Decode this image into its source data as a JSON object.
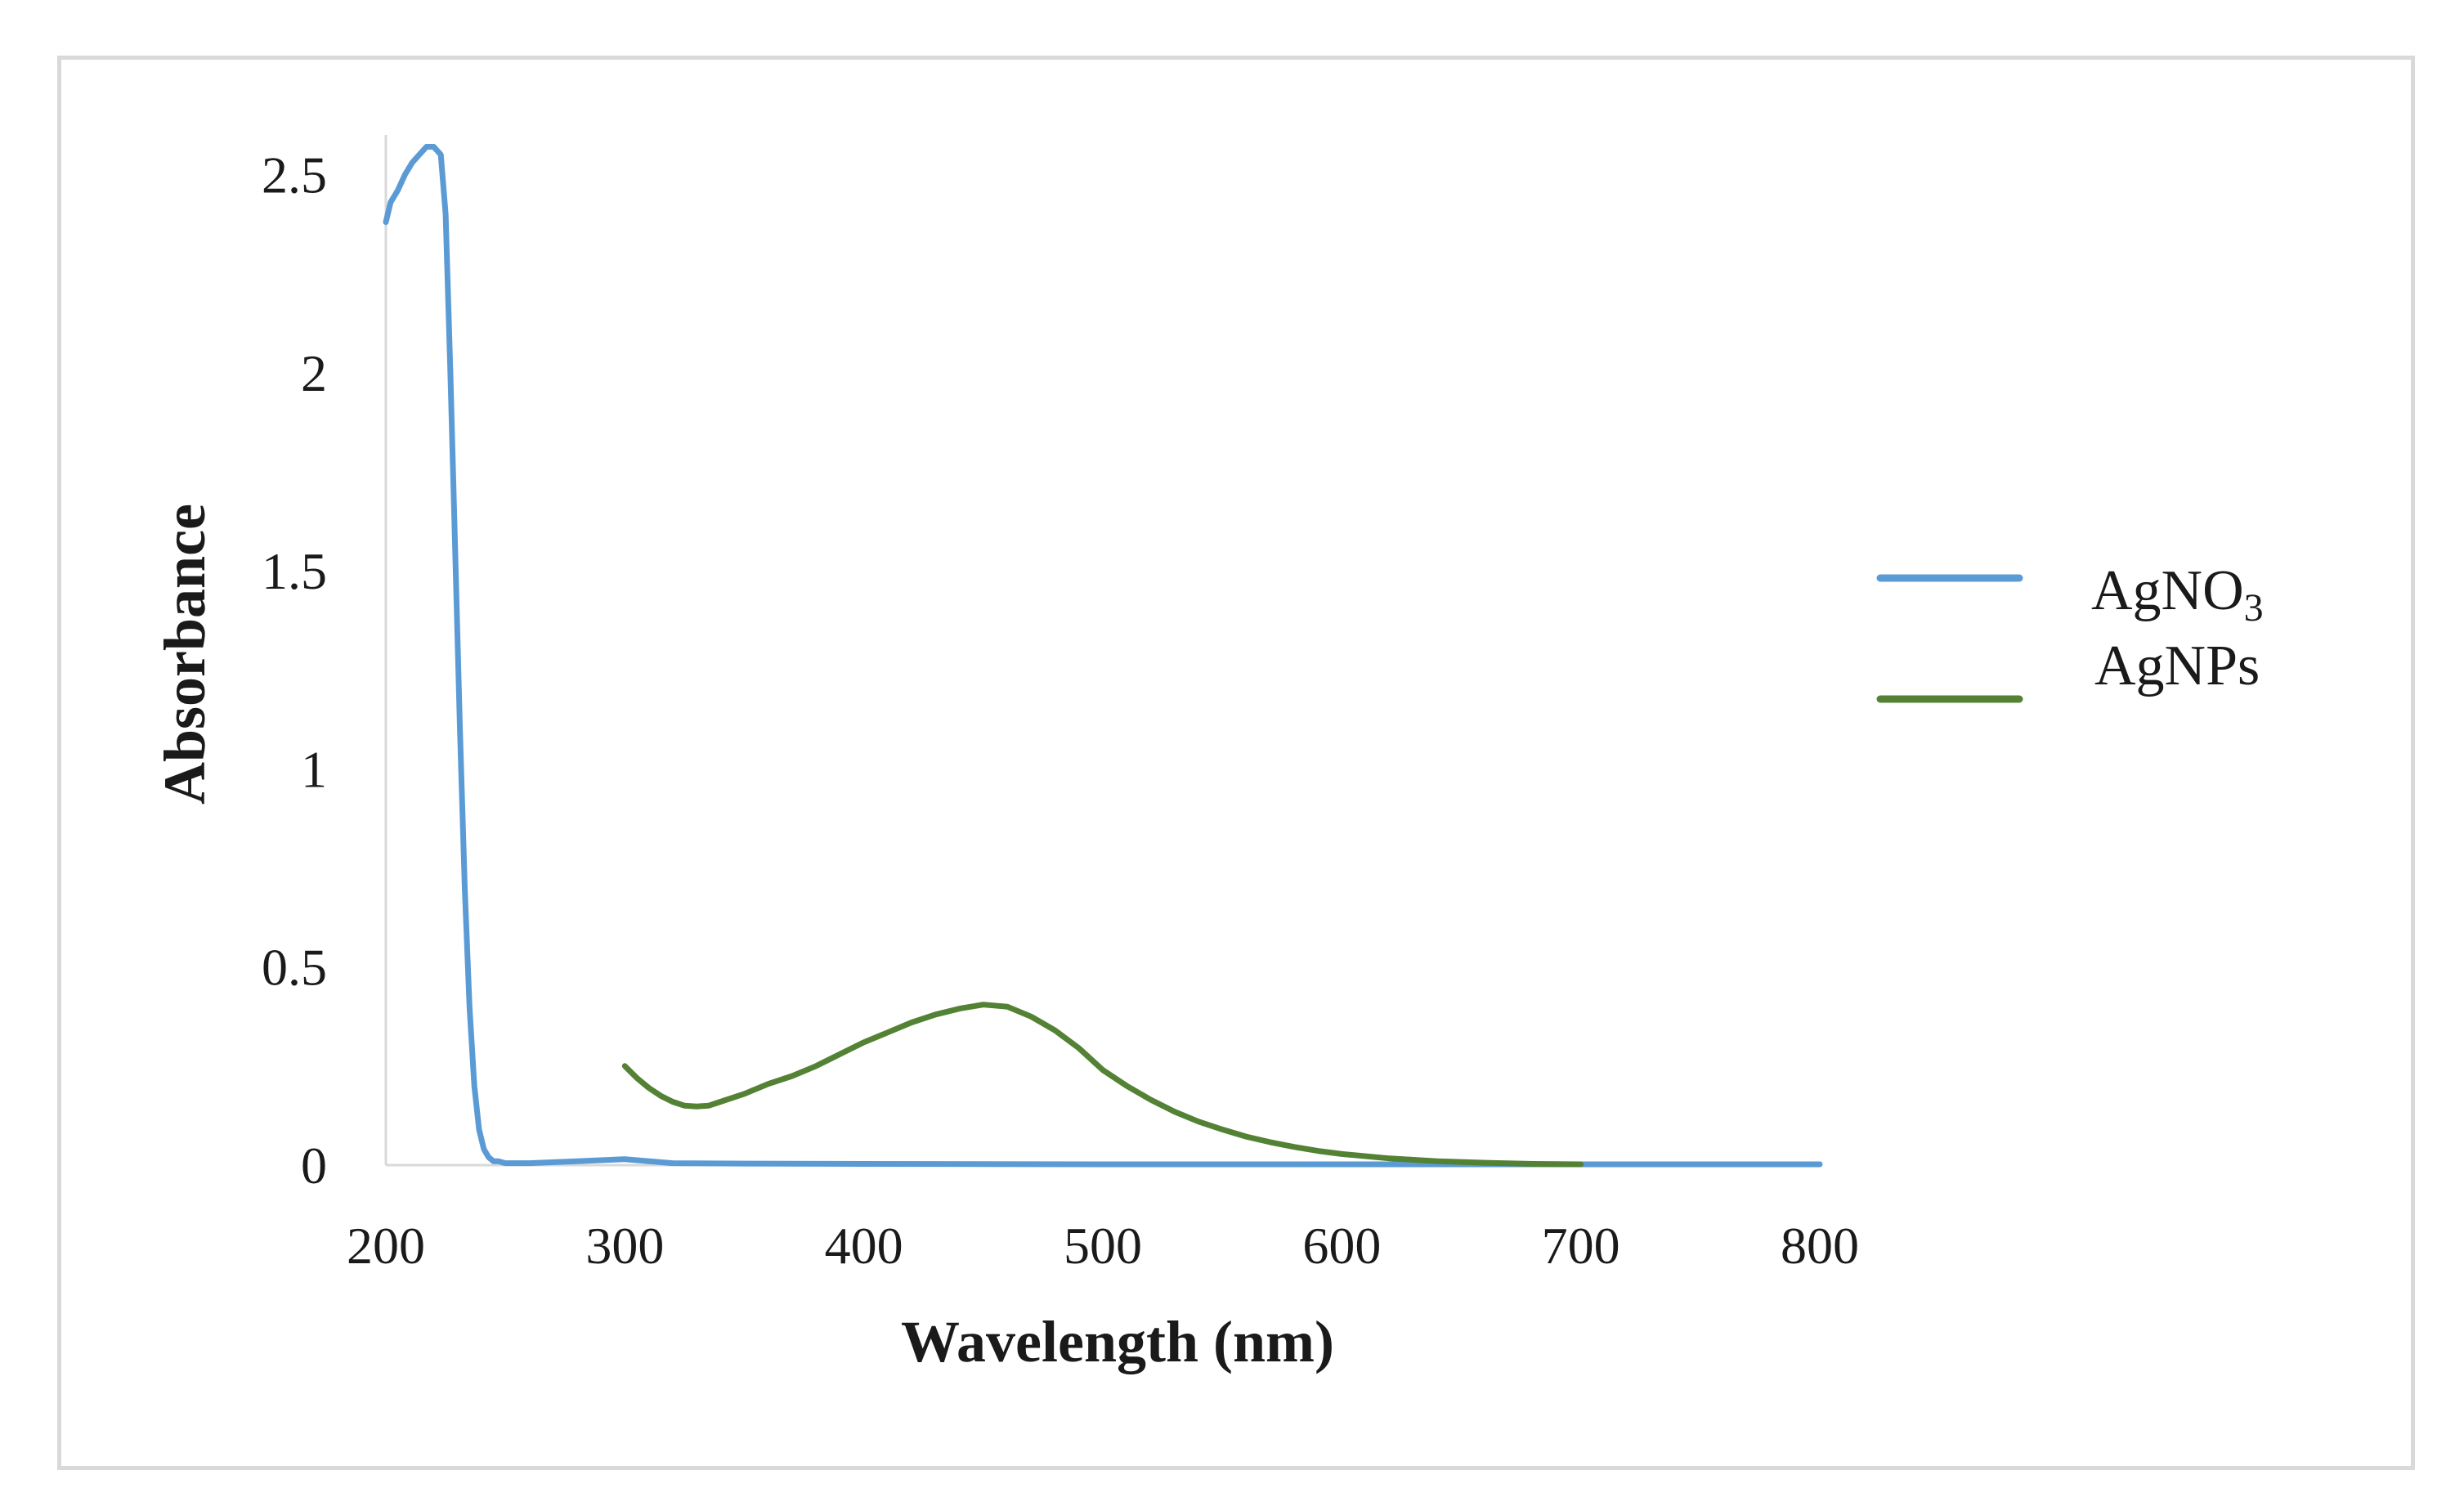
{
  "chart_data": {
    "type": "line",
    "title": "",
    "xlabel": "Wavelength (nm)",
    "ylabel": "Absorbance",
    "xlim": [
      200,
      800
    ],
    "ylim": [
      0,
      2.6
    ],
    "xticks": [
      200,
      300,
      400,
      500,
      600,
      700,
      800
    ],
    "xtick_labels": [
      "200",
      "300",
      "400",
      "500",
      "600",
      "700",
      "800"
    ],
    "yticks": [
      0,
      0.5,
      1,
      1.5,
      2,
      2.5
    ],
    "ytick_labels": [
      "0",
      "0.5",
      "1",
      "1.5",
      "2",
      "2.5"
    ],
    "grid": false,
    "legend_position": "right",
    "series": [
      {
        "name": "AgNO3",
        "label_main": "AgNO",
        "label_sub": "3",
        "color": "#5b9bd5",
        "x": [
          200,
          202,
          205,
          208,
          211,
          214,
          217,
          220,
          223,
          225,
          227,
          229,
          231,
          233,
          235,
          237,
          239,
          241,
          243,
          245,
          247,
          250,
          255,
          260,
          280,
          300,
          320,
          350,
          400,
          500,
          600,
          700,
          800
        ],
        "y": [
          2.38,
          2.43,
          2.46,
          2.5,
          2.53,
          2.55,
          2.57,
          2.57,
          2.55,
          2.4,
          2.0,
          1.55,
          1.1,
          0.7,
          0.4,
          0.2,
          0.09,
          0.04,
          0.02,
          0.01,
          0.01,
          0.005,
          0.005,
          0.005,
          0.01,
          0.015,
          0.005,
          0.004,
          0.003,
          0.002,
          0.002,
          0.002,
          0.002
        ]
      },
      {
        "name": "AgNPs",
        "label_main": "AgNPs",
        "label_sub": "",
        "color": "#548235",
        "x": [
          300,
          305,
          310,
          315,
          320,
          325,
          330,
          335,
          340,
          350,
          360,
          370,
          380,
          390,
          400,
          410,
          420,
          430,
          440,
          450,
          460,
          470,
          480,
          490,
          500,
          510,
          520,
          530,
          540,
          550,
          560,
          570,
          580,
          590,
          600,
          620,
          640,
          660,
          680,
          700
        ],
        "y": [
          0.25,
          0.22,
          0.195,
          0.175,
          0.16,
          0.15,
          0.148,
          0.15,
          0.16,
          0.18,
          0.205,
          0.225,
          0.25,
          0.28,
          0.31,
          0.335,
          0.36,
          0.38,
          0.395,
          0.405,
          0.4,
          0.375,
          0.34,
          0.295,
          0.24,
          0.2,
          0.165,
          0.135,
          0.11,
          0.09,
          0.072,
          0.058,
          0.046,
          0.036,
          0.028,
          0.017,
          0.01,
          0.006,
          0.003,
          0.002
        ]
      }
    ]
  }
}
